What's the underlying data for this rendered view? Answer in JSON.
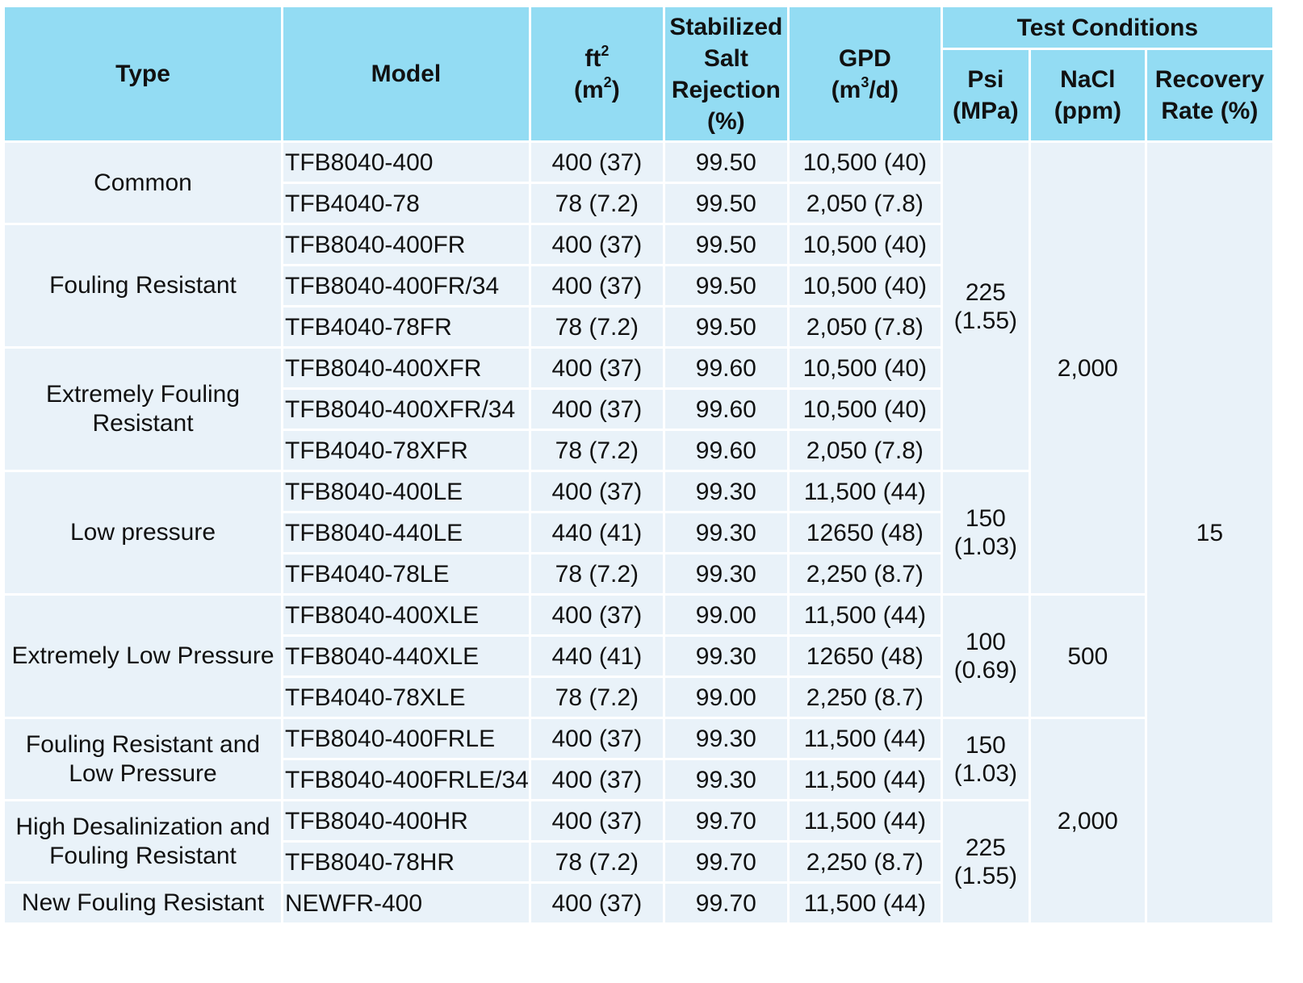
{
  "headers": {
    "type": "Type",
    "model": "Model",
    "area": {
      "main": "ft",
      "sup": "2",
      "sub_open": "(m",
      "sub_sup": "2",
      "sub_close": ")"
    },
    "salt": "Stabilized Salt Rejection (%)",
    "gpd": {
      "main": "GPD",
      "open": "(m",
      "sup": "3",
      "close": "/d)"
    },
    "test_conditions": "Test Conditions",
    "psi": {
      "line1": "Psi",
      "line2": "(MPa)"
    },
    "nacl": {
      "line1": "NaCl",
      "line2": "(ppm)"
    },
    "recovery": "Recovery Rate (%)"
  },
  "types": [
    "Common",
    "Fouling Resistant",
    "Extremely Fouling Resistant",
    "Low pressure",
    "Extremely Low Pressure",
    "Fouling Resistant and Low Pressure",
    "High Desalinization and Fouling Resistant",
    "New Fouling Resistant"
  ],
  "rows": [
    {
      "model": "TFB8040-400",
      "area": "400 (37)",
      "salt": "99.50",
      "gpd": "10,500 (40)"
    },
    {
      "model": "TFB4040-78",
      "area": "78 (7.2)",
      "salt": "99.50",
      "gpd": "2,050 (7.8)"
    },
    {
      "model": "TFB8040-400FR",
      "area": "400 (37)",
      "salt": "99.50",
      "gpd": "10,500 (40)"
    },
    {
      "model": "TFB8040-400FR/34",
      "area": "400 (37)",
      "salt": "99.50",
      "gpd": "10,500 (40)"
    },
    {
      "model": "TFB4040-78FR",
      "area": "78 (7.2)",
      "salt": "99.50",
      "gpd": "2,050 (7.8)"
    },
    {
      "model": "TFB8040-400XFR",
      "area": "400 (37)",
      "salt": "99.60",
      "gpd": "10,500 (40)"
    },
    {
      "model": "TFB8040-400XFR/34",
      "area": "400 (37)",
      "salt": "99.60",
      "gpd": "10,500 (40)"
    },
    {
      "model": "TFB4040-78XFR",
      "area": "78 (7.2)",
      "salt": "99.60",
      "gpd": "2,050 (7.8)"
    },
    {
      "model": "TFB8040-400LE",
      "area": "400 (37)",
      "salt": "99.30",
      "gpd": "11,500 (44)"
    },
    {
      "model": "TFB8040-440LE",
      "area": "440 (41)",
      "salt": "99.30",
      "gpd": "12650 (48)"
    },
    {
      "model": "TFB4040-78LE",
      "area": "78 (7.2)",
      "salt": "99.30",
      "gpd": "2,250 (8.7)"
    },
    {
      "model": "TFB8040-400XLE",
      "area": "400 (37)",
      "salt": "99.00",
      "gpd": "11,500 (44)"
    },
    {
      "model": "TFB8040-440XLE",
      "area": "440 (41)",
      "salt": "99.30",
      "gpd": "12650 (48)"
    },
    {
      "model": "TFB4040-78XLE",
      "area": "78 (7.2)",
      "salt": "99.00",
      "gpd": "2,250 (8.7)"
    },
    {
      "model": "TFB8040-400FRLE",
      "area": "400 (37)",
      "salt": "99.30",
      "gpd": "11,500 (44)"
    },
    {
      "model": "TFB8040-400FRLE/34",
      "area": "400 (37)",
      "salt": "99.30",
      "gpd": "11,500 (44)"
    },
    {
      "model": "TFB8040-400HR",
      "area": "400 (37)",
      "salt": "99.70",
      "gpd": "11,500 (44)"
    },
    {
      "model": "TFB8040-78HR",
      "area": "78 (7.2)",
      "salt": "99.70",
      "gpd": "2,250 (8.7)"
    },
    {
      "model": "NEWFR-400",
      "area": "400 (37)",
      "salt": "99.70",
      "gpd": "11,500 (44)"
    }
  ],
  "psi_groups": [
    {
      "line1": "225",
      "line2": "(1.55)"
    },
    {
      "line1": "150",
      "line2": "(1.03)"
    },
    {
      "line1": "100",
      "line2": "(0.69)"
    },
    {
      "line1": "150",
      "line2": "(1.03)"
    },
    {
      "line1": "225",
      "line2": "(1.55)"
    }
  ],
  "nacl_groups": [
    "2,000",
    "500",
    "2,000"
  ],
  "recovery": "15",
  "colors": {
    "header_bg": "#93dcf3",
    "row_bg": "#e9f2f9",
    "border": "#ffffff"
  }
}
